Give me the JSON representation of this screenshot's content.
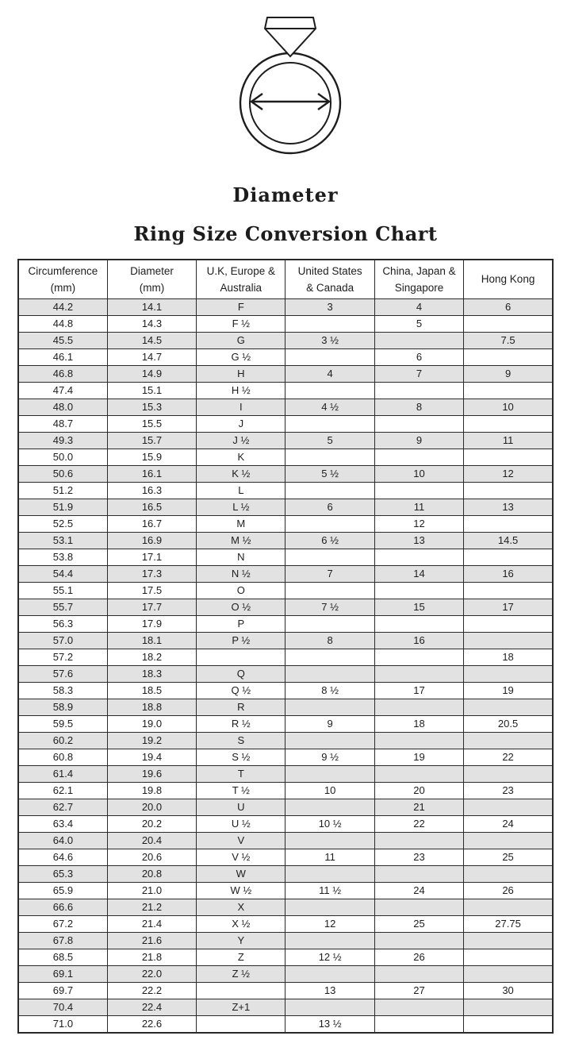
{
  "header": {
    "diameter_label": "Diameter",
    "title": "Ring Size Conversion Chart"
  },
  "icons": {
    "ring": "ring-with-diamond-and-diameter-arrow-icon"
  },
  "colors": {
    "background": "#ffffff",
    "text": "#1e1e1e",
    "table_border": "#2a2a2a",
    "shaded_row": "#e2e2e2",
    "line_art": "#1d1d1d"
  },
  "chart_data": {
    "type": "table",
    "title": "Ring Size Conversion Chart",
    "layout_hints": {
      "columns_equal_width": true,
      "row_striping": "odd rows shaded, starting with first data row",
      "all_cells_centered": true
    },
    "columns": [
      {
        "line1": "Circumference",
        "line2": "(mm)"
      },
      {
        "line1": "Diameter",
        "line2": "(mm)"
      },
      {
        "line1": "U.K, Europe &",
        "line2": "Australia"
      },
      {
        "line1": "United States",
        "line2": "& Canada"
      },
      {
        "line1": "China, Japan &",
        "line2": "Singapore"
      },
      {
        "line1": "Hong Kong",
        "line2": ""
      }
    ],
    "rows": [
      [
        "44.2",
        "14.1",
        "F",
        "3",
        "4",
        "6"
      ],
      [
        "44.8",
        "14.3",
        "F ½",
        "",
        "5",
        ""
      ],
      [
        "45.5",
        "14.5",
        "G",
        "3 ½",
        "",
        "7.5"
      ],
      [
        "46.1",
        "14.7",
        "G ½",
        "",
        "6",
        ""
      ],
      [
        "46.8",
        "14.9",
        "H",
        "4",
        "7",
        "9"
      ],
      [
        "47.4",
        "15.1",
        "H ½",
        "",
        "",
        ""
      ],
      [
        "48.0",
        "15.3",
        "I",
        "4 ½",
        "8",
        "10"
      ],
      [
        "48.7",
        "15.5",
        "J",
        "",
        "",
        ""
      ],
      [
        "49.3",
        "15.7",
        "J ½",
        "5",
        "9",
        "11"
      ],
      [
        "50.0",
        "15.9",
        "K",
        "",
        "",
        ""
      ],
      [
        "50.6",
        "16.1",
        "K ½",
        "5 ½",
        "10",
        "12"
      ],
      [
        "51.2",
        "16.3",
        "L",
        "",
        "",
        ""
      ],
      [
        "51.9",
        "16.5",
        "L ½",
        "6",
        "11",
        "13"
      ],
      [
        "52.5",
        "16.7",
        "M",
        "",
        "12",
        ""
      ],
      [
        "53.1",
        "16.9",
        "M ½",
        "6 ½",
        "13",
        "14.5"
      ],
      [
        "53.8",
        "17.1",
        "N",
        "",
        "",
        ""
      ],
      [
        "54.4",
        "17.3",
        "N ½",
        "7",
        "14",
        "16"
      ],
      [
        "55.1",
        "17.5",
        "O",
        "",
        "",
        ""
      ],
      [
        "55.7",
        "17.7",
        "O ½",
        "7 ½",
        "15",
        "17"
      ],
      [
        "56.3",
        "17.9",
        "P",
        "",
        "",
        ""
      ],
      [
        "57.0",
        "18.1",
        "P ½",
        "8",
        "16",
        ""
      ],
      [
        "57.2",
        "18.2",
        "",
        "",
        "",
        "18"
      ],
      [
        "57.6",
        "18.3",
        "Q",
        "",
        "",
        ""
      ],
      [
        "58.3",
        "18.5",
        "Q ½",
        "8 ½",
        "17",
        "19"
      ],
      [
        "58.9",
        "18.8",
        "R",
        "",
        "",
        ""
      ],
      [
        "59.5",
        "19.0",
        "R ½",
        "9",
        "18",
        "20.5"
      ],
      [
        "60.2",
        "19.2",
        "S",
        "",
        "",
        ""
      ],
      [
        "60.8",
        "19.4",
        "S ½",
        "9 ½",
        "19",
        "22"
      ],
      [
        "61.4",
        "19.6",
        "T",
        "",
        "",
        ""
      ],
      [
        "62.1",
        "19.8",
        "T ½",
        "10",
        "20",
        "23"
      ],
      [
        "62.7",
        "20.0",
        "U",
        "",
        "21",
        ""
      ],
      [
        "63.4",
        "20.2",
        "U ½",
        "10 ½",
        "22",
        "24"
      ],
      [
        "64.0",
        "20.4",
        "V",
        "",
        "",
        ""
      ],
      [
        "64.6",
        "20.6",
        "V ½",
        "11",
        "23",
        "25"
      ],
      [
        "65.3",
        "20.8",
        "W",
        "",
        "",
        ""
      ],
      [
        "65.9",
        "21.0",
        "W ½",
        "11 ½",
        "24",
        "26"
      ],
      [
        "66.6",
        "21.2",
        "X",
        "",
        "",
        ""
      ],
      [
        "67.2",
        "21.4",
        "X ½",
        "12",
        "25",
        "27.75"
      ],
      [
        "67.8",
        "21.6",
        "Y",
        "",
        "",
        ""
      ],
      [
        "68.5",
        "21.8",
        "Z",
        "12 ½",
        "26",
        ""
      ],
      [
        "69.1",
        "22.0",
        "Z ½",
        "",
        "",
        ""
      ],
      [
        "69.7",
        "22.2",
        "",
        "13",
        "27",
        "30"
      ],
      [
        "70.4",
        "22.4",
        "Z+1",
        "",
        "",
        ""
      ],
      [
        "71.0",
        "22.6",
        "",
        "13 ½",
        "",
        ""
      ]
    ]
  }
}
